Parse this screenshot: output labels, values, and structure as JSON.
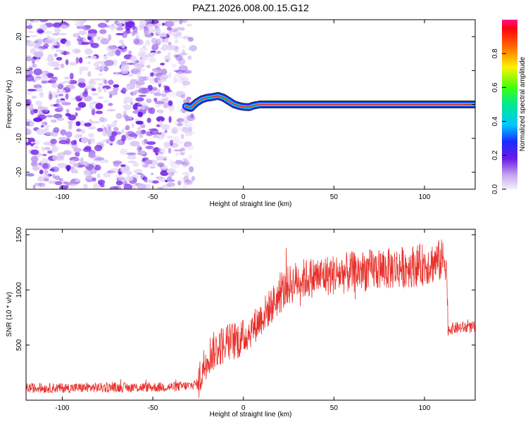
{
  "title": "PAZ1.2026.008.00.15.G12",
  "chart_data": [
    {
      "type": "heatmap",
      "title": "PAZ1.2026.008.00.15.G12",
      "xlabel": "Height of straight line (km)",
      "ylabel": "Frequency (Hz)",
      "xlim": [
        -120,
        128
      ],
      "ylim": [
        -25,
        25
      ],
      "xticks": [
        -100,
        -50,
        0,
        50,
        100
      ],
      "yticks": [
        -20,
        -10,
        0,
        10,
        20
      ],
      "noise_region_x": [
        -120,
        -30
      ],
      "ridge": {
        "description": "dominant frequency trace",
        "x": [
          -32,
          -29,
          -26,
          -23,
          -20,
          -17,
          -14,
          -11,
          -8,
          -5,
          -2,
          0,
          3,
          6,
          9,
          15,
          128
        ],
        "y": [
          -0.5,
          -1.0,
          0.5,
          1.5,
          2.0,
          2.2,
          2.5,
          2.0,
          1.0,
          0.0,
          -0.5,
          -0.7,
          -0.8,
          -0.3,
          0.0,
          0.0,
          0.0
        ]
      },
      "colorbar": {
        "label": "Normalized spectral amplitude",
        "range": [
          0.0,
          1.0
        ],
        "ticks": [
          0.0,
          0.2,
          0.4,
          0.6,
          0.8
        ]
      }
    },
    {
      "type": "line",
      "xlabel": "Height of straight line (km)",
      "ylabel": "SNR (10 * v/v)",
      "xlim": [
        -120,
        128
      ],
      "ylim": [
        0,
        1550
      ],
      "xticks": [
        -100,
        -50,
        0,
        50,
        100
      ],
      "yticks": [
        500,
        1000,
        1500
      ],
      "series": [
        {
          "name": "SNR",
          "color": "#e8302a",
          "x": [
            -120,
            -100,
            -80,
            -60,
            -40,
            -30,
            -25,
            -22,
            -20,
            -15,
            -10,
            -5,
            0,
            5,
            10,
            15,
            20,
            25,
            30,
            40,
            50,
            60,
            70,
            80,
            90,
            100,
            105,
            110,
            112,
            113,
            115,
            120,
            128
          ],
          "y": [
            110,
            110,
            115,
            115,
            120,
            130,
            150,
            300,
            400,
            460,
            520,
            540,
            560,
            650,
            750,
            850,
            950,
            1040,
            1090,
            1120,
            1140,
            1160,
            1180,
            1190,
            1210,
            1230,
            1250,
            1270,
            1280,
            640,
            650,
            660,
            660
          ]
        }
      ]
    }
  ]
}
